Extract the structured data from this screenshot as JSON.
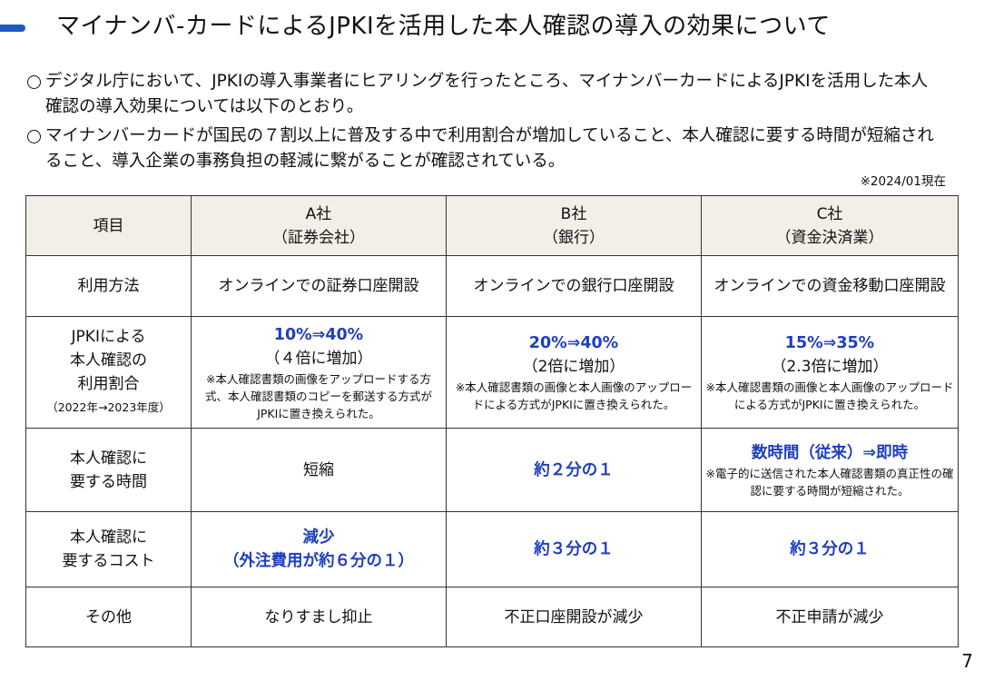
{
  "header": {
    "title": "マイナンバ-カードによるJPKIを活用した本人確認の導入の効果について"
  },
  "bullets": [
    "デジタル庁において、JPKIの導入事業者にヒアリングを行ったところ、マイナンバーカードによるJPKIを活用した本人確認の導入効果については以下のとおり。",
    "マイナンバーカードが国民の７割以上に普及する中で利用割合が増加していること、本人確認に要する時間が短縮されること、導入企業の事務負担の軽減に繋がることが確認されている。"
  ],
  "note": "※2024/01現在",
  "table": {
    "header": [
      [
        "項目"
      ],
      [
        "A社",
        "（証券会社）"
      ],
      [
        "B社",
        "（銀行）"
      ],
      [
        "C社",
        "（資金決済業）"
      ]
    ],
    "rows": [
      {
        "label": [
          "利用方法"
        ],
        "cells": [
          {
            "main": "オンラインでの証券口座開設"
          },
          {
            "main": "オンラインでの銀行口座開設"
          },
          {
            "main": "オンラインでの資金移動口座開設"
          }
        ]
      },
      {
        "label": [
          "JPKIによる",
          "本人確認の",
          "利用割合"
        ],
        "label_note": "（2022年→2023年度）",
        "cells": [
          {
            "highlight": [
              "10%⇒40%"
            ],
            "main": "（４倍に増加）",
            "note": "※本人確認書類の画像をアップロードする方式、本人確認書類のコピーを郵送する方式がJPKIに置き換えられた。"
          },
          {
            "highlight": [
              "20%⇒40%"
            ],
            "main": "（2倍に増加）",
            "note": "※本人確認書類の画像と本人画像のアップロードによる方式がJPKIに置き換えられた。"
          },
          {
            "highlight": [
              "15%⇒35%"
            ],
            "main": "（2.3倍に増加）",
            "note": "※本人確認書類の画像と本人画像のアップロードによる方式がJPKIに置き換えられた。"
          }
        ]
      },
      {
        "label": [
          "本人確認に",
          "要する時間"
        ],
        "cells": [
          {
            "main": "短縮"
          },
          {
            "highlight": [
              "約２分の１"
            ]
          },
          {
            "highlight": [
              "数時間（従来）⇒即時"
            ],
            "note": "※電子的に送信された本人確認書類の真正性の確認に要する時間が短縮された。"
          }
        ]
      },
      {
        "label": [
          "本人確認に",
          "要するコスト"
        ],
        "cells": [
          {
            "highlight": [
              "減少",
              "（外注費用が約６分の１）"
            ]
          },
          {
            "highlight": [
              "約３分の１"
            ]
          },
          {
            "highlight": [
              "約３分の１"
            ]
          }
        ]
      },
      {
        "label": [
          "その他"
        ],
        "cells": [
          {
            "main": "なりすまし抑止"
          },
          {
            "main": "不正口座開設が減少"
          },
          {
            "main": "不正申請が減少"
          }
        ]
      }
    ]
  },
  "page_number": "7"
}
